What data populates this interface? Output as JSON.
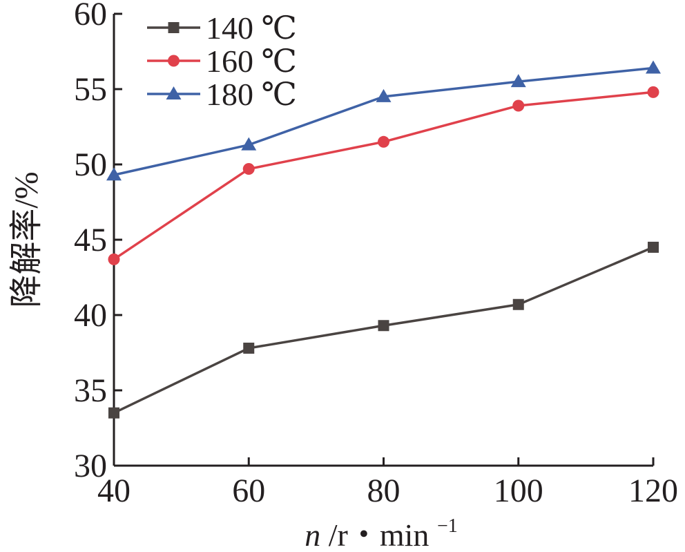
{
  "chart_data": {
    "type": "line",
    "x": [
      40,
      60,
      80,
      100,
      120
    ],
    "series": [
      {
        "name": "140 ℃",
        "values": [
          33.5,
          37.8,
          39.3,
          40.7,
          44.5
        ],
        "color": "#4a4442",
        "marker": "square"
      },
      {
        "name": "160 ℃",
        "values": [
          43.7,
          49.7,
          51.5,
          53.9,
          54.8
        ],
        "color": "#e0414b",
        "marker": "circle"
      },
      {
        "name": "180 ℃",
        "values": [
          49.3,
          51.3,
          54.5,
          55.5,
          56.4
        ],
        "color": "#3f62a6",
        "marker": "triangle"
      }
    ],
    "xticks": [
      "40",
      "60",
      "80",
      "100",
      "120"
    ],
    "yticks": [
      "30",
      "35",
      "40",
      "45",
      "50",
      "55",
      "60"
    ],
    "xlim": [
      40,
      120
    ],
    "ylim": [
      30,
      60
    ],
    "xlabel": {
      "italic": "n",
      "rest": "/r・min",
      "sup": "−1"
    },
    "ylabel": "降解率/%",
    "grid": false,
    "legend_position": "top-left"
  }
}
